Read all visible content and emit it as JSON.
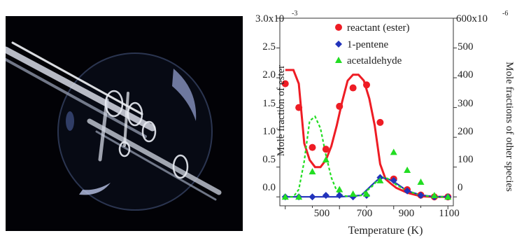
{
  "photo": {
    "subject": "reactor-flask-photo"
  },
  "chart_data": {
    "type": "scatter",
    "xlabel": "Temperature (K)",
    "ylabel_left": "Mole fraction of ester",
    "ylabel_right": "Mole fractions of other species",
    "xlim": [
      480,
      1120
    ],
    "ylim_left": [
      -0.15,
      3.0
    ],
    "ylim_right": [
      -30,
      600
    ],
    "x_ticks": [
      "500",
      "700",
      "900",
      "1100"
    ],
    "x_minor_ticks": [
      "600",
      "800",
      "1000"
    ],
    "y_left_ticks": [
      "0.0",
      "0.5",
      "1.0",
      "1.5",
      "2.0",
      "2.5",
      "3.0x10"
    ],
    "y_left_exponent": "-3",
    "y_right_ticks": [
      "0",
      "100",
      "200",
      "300",
      "400",
      "500",
      "600x10"
    ],
    "y_right_exponent": "-6",
    "legend_position": "top-right",
    "series": [
      {
        "name": "reactant (ester)",
        "axis": "left",
        "color": "#ee1c24",
        "marker": "circle",
        "x": [
          500,
          550,
          600,
          650,
          700,
          750,
          800,
          850,
          900,
          950,
          1000,
          1050,
          1100
        ],
        "y": [
          1.9,
          1.5,
          0.83,
          0.8,
          1.52,
          1.83,
          1.88,
          1.25,
          0.3,
          0.12,
          0.03,
          0.0,
          0.0
        ],
        "model_x": [
          500,
          510,
          520,
          530,
          550,
          570,
          590,
          610,
          630,
          650,
          670,
          690,
          710,
          730,
          750,
          770,
          790,
          810,
          830,
          850,
          870,
          890,
          910,
          950,
          1000,
          1050,
          1100
        ],
        "model_y": [
          2.13,
          2.13,
          2.13,
          2.13,
          1.9,
          0.9,
          0.62,
          0.5,
          0.5,
          0.62,
          0.85,
          1.2,
          1.6,
          1.95,
          2.05,
          2.05,
          1.95,
          1.65,
          1.2,
          0.55,
          0.3,
          0.22,
          0.15,
          0.07,
          0.01,
          0.0,
          0.0
        ]
      },
      {
        "name": "1-pentene",
        "axis": "right",
        "color": "#2233bb",
        "marker": "diamond",
        "x": [
          500,
          550,
          600,
          650,
          700,
          750,
          800,
          850,
          900,
          950,
          1000,
          1050,
          1100
        ],
        "y": [
          0,
          0,
          0,
          5,
          5,
          0,
          5,
          65,
          55,
          20,
          5,
          0,
          0
        ],
        "model_x": [
          500,
          600,
          700,
          780,
          820,
          850,
          880,
          910,
          950,
          1000,
          1050,
          1100
        ],
        "model_y": [
          0,
          0,
          0,
          5,
          40,
          65,
          60,
          45,
          20,
          6,
          1,
          0
        ]
      },
      {
        "name": "acetaldehyde",
        "axis": "right",
        "color": "#22dd22",
        "marker": "triangle",
        "x": [
          500,
          550,
          600,
          650,
          700,
          750,
          800,
          850,
          900,
          950,
          1000,
          1050,
          1100
        ],
        "y": [
          0,
          0,
          85,
          125,
          25,
          10,
          10,
          55,
          150,
          90,
          50,
          5,
          0
        ],
        "model_x": [
          500,
          530,
          550,
          570,
          590,
          610,
          630,
          650,
          670,
          690,
          710,
          740,
          780,
          820,
          850,
          870,
          890,
          910,
          950,
          1000,
          1050,
          1100
        ],
        "model_y": [
          0,
          0,
          25,
          120,
          255,
          270,
          230,
          140,
          65,
          20,
          5,
          0,
          5,
          35,
          65,
          65,
          55,
          40,
          20,
          5,
          0,
          0
        ]
      }
    ]
  }
}
